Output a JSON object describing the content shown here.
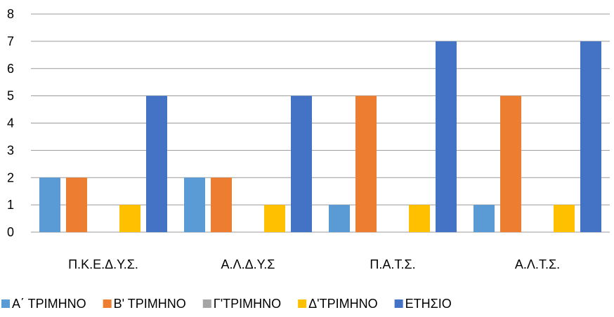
{
  "chart_data": {
    "type": "bar",
    "categories": [
      "Π.Κ.Ε.Δ.Υ.Σ.",
      "Α.Λ.Δ.Υ.Σ",
      "Π.Α.Τ.Σ.",
      "Α.Λ.Τ.Σ."
    ],
    "series": [
      {
        "name": "Α΄ ΤΡΙΜΗΝΟ",
        "color": "#5b9bd5",
        "values": [
          2,
          2,
          1,
          1
        ]
      },
      {
        "name": "Β' ΤΡΙΜΗΝΟ",
        "color": "#ed7d31",
        "values": [
          2,
          2,
          5,
          5
        ]
      },
      {
        "name": "Γ'ΤΡΙΜΗΝΟ",
        "color": "#a5a5a5",
        "values": [
          0,
          0,
          0,
          0
        ]
      },
      {
        "name": "Δ'ΤΡΙΜΗΝΟ",
        "color": "#ffc000",
        "values": [
          1,
          1,
          1,
          1
        ]
      },
      {
        "name": "ΕΤΗΣΙΟ",
        "color": "#4472c4",
        "values": [
          5,
          5,
          7,
          7
        ]
      }
    ],
    "ylim": [
      0,
      8
    ],
    "yticks": [
      0,
      1,
      2,
      3,
      4,
      5,
      6,
      7,
      8
    ],
    "grid": true,
    "legend_position": "bottom",
    "title": "",
    "xlabel": "",
    "ylabel": ""
  }
}
